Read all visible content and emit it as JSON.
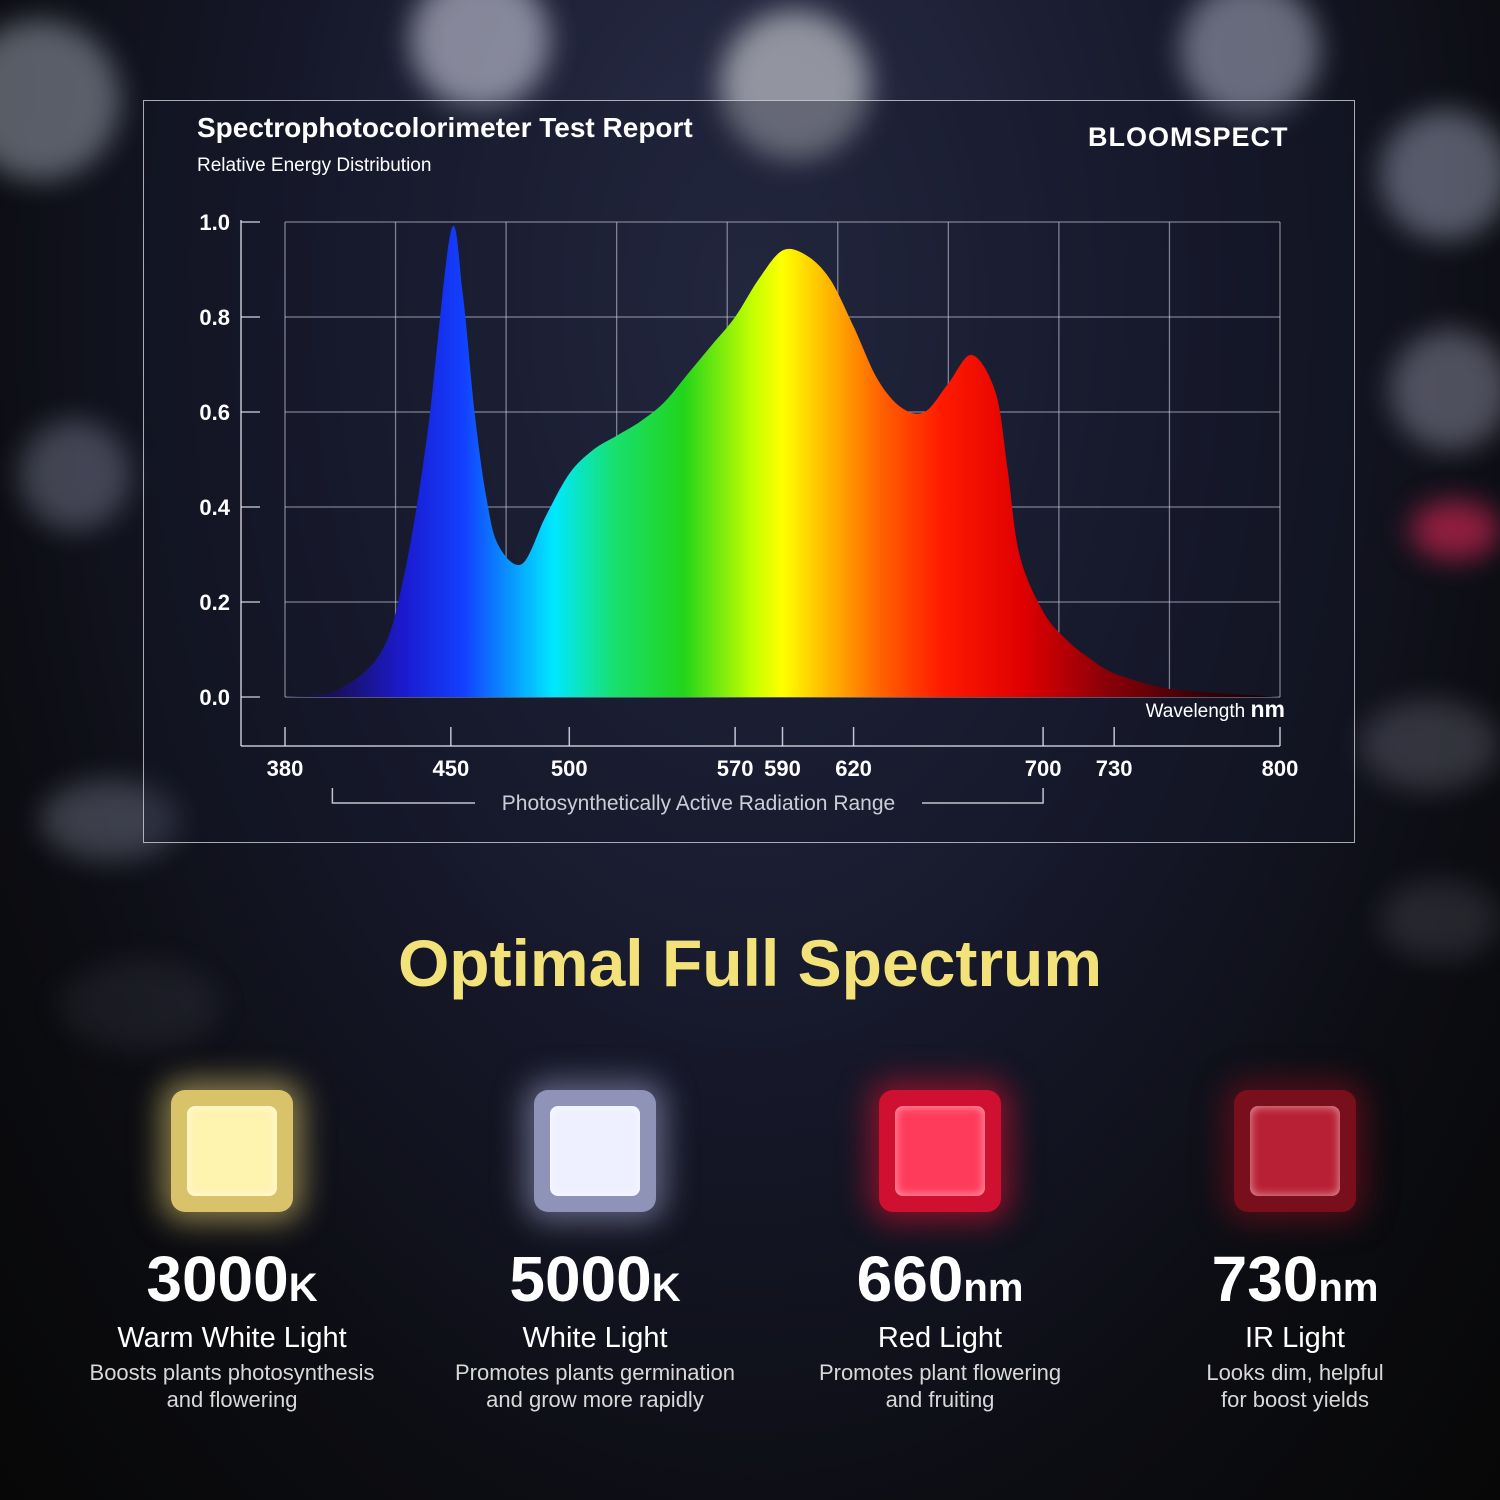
{
  "chart_title": "Spectrophotocolorimeter Test Report",
  "chart_subtitle": "Relative Energy Distribution",
  "brand": "BLOOMSPECT",
  "chart_data": {
    "type": "area",
    "title": "Spectrophotocolorimeter Test Report",
    "subtitle": "Relative Energy Distribution",
    "xlabel": "Wavelength nm",
    "ylabel": "",
    "xlim": [
      380,
      800
    ],
    "ylim": [
      0,
      1.0
    ],
    "x_ticks": [
      380,
      450,
      500,
      570,
      590,
      620,
      700,
      730,
      800
    ],
    "y_ticks": [
      "0.0",
      "0.2",
      "0.4",
      "0.6",
      "0.8",
      "1.0"
    ],
    "grid": true,
    "range_annotation": {
      "label": "Photosynthetically Active Radiation Range",
      "from": 400,
      "to": 700
    },
    "x": [
      380,
      400,
      420,
      430,
      440,
      450,
      455,
      460,
      465,
      470,
      480,
      490,
      500,
      510,
      520,
      530,
      540,
      550,
      560,
      570,
      580,
      590,
      600,
      610,
      620,
      630,
      640,
      650,
      660,
      670,
      680,
      685,
      690,
      700,
      710,
      720,
      730,
      750,
      770,
      800
    ],
    "y": [
      0.0,
      0.01,
      0.09,
      0.25,
      0.55,
      0.98,
      0.85,
      0.6,
      0.42,
      0.32,
      0.28,
      0.38,
      0.47,
      0.52,
      0.55,
      0.58,
      0.62,
      0.68,
      0.74,
      0.8,
      0.88,
      0.94,
      0.93,
      0.88,
      0.78,
      0.67,
      0.61,
      0.6,
      0.66,
      0.72,
      0.64,
      0.48,
      0.3,
      0.18,
      0.12,
      0.08,
      0.05,
      0.02,
      0.01,
      0.0
    ]
  },
  "headline": "Optimal Full Spectrum",
  "features": [
    {
      "value": "3000",
      "unit": "K",
      "name": "Warm White Light",
      "desc1": "Boosts plants photosynthesis",
      "desc2": "and flowering",
      "color": "#fff3b0",
      "glow": "#d8c36a"
    },
    {
      "value": "5000",
      "unit": "K",
      "name": "White Light",
      "desc1": "Promotes plants germination",
      "desc2": "and grow more rapidly",
      "color": "#eef0ff",
      "glow": "#8f93b8"
    },
    {
      "value": "660",
      "unit": "nm",
      "name": "Red Light",
      "desc1": "Promotes plant flowering",
      "desc2": "and fruiting",
      "color": "#ff3b5c",
      "glow": "#d01030"
    },
    {
      "value": "730",
      "unit": "nm",
      "name": "IR Light",
      "desc1": "Looks dim, helpful",
      "desc2": "for boost yields",
      "color": "#b82035",
      "glow": "#7a0f1c"
    }
  ]
}
